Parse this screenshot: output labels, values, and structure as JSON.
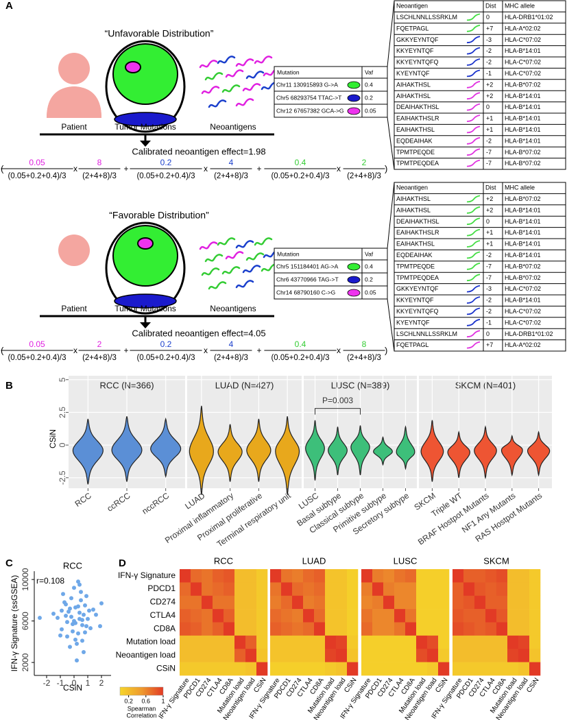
{
  "panel_a": {
    "label": "A",
    "symbols": {
      "open": "(",
      "times": "x",
      "plus": "+",
      "close": ")"
    },
    "scenarios": [
      {
        "title": "“Unfavorable Distribution”",
        "labels": {
          "patient": "Patient",
          "tumor": "Tumor Mutations",
          "neoantigens": "Neoantigens"
        },
        "effect": "Calibrated neoantigen effect=1.98",
        "formula": [
          {
            "n1": "0.05",
            "color": "#e020e0",
            "d1": "(0.05+0.2+0.4)/3",
            "n2": "8",
            "d2": "(2+4+8)/3"
          },
          {
            "n1": "0.2",
            "color": "#1a3fcc",
            "d1": "(0.05+0.2+0.4)/3",
            "n2": "4",
            "d2": "(2+4+8)/3"
          },
          {
            "n1": "0.4",
            "color": "#33cc33",
            "d1": "(0.05+0.2+0.4)/3",
            "n2": "2",
            "d2": "(2+4+8)/3"
          }
        ],
        "mutation_table": {
          "header": [
            "Mutation",
            "Vaf"
          ],
          "rows": [
            {
              "mutation": "Chr11 130915893 G->A",
              "color": "#33ee33",
              "vaf": "0.4"
            },
            {
              "mutation": "Chr5 68293754 TTAC->T",
              "color": "#1a1acc",
              "vaf": "0.2"
            },
            {
              "mutation": "Chr12 67657382 GCA->G",
              "color": "#ee33ee",
              "vaf": "0.05"
            }
          ]
        },
        "neoantigen_table": {
          "header": [
            "Neoantigen",
            "Dist",
            "MHC allele"
          ],
          "rows": [
            {
              "neoantigen": "LSCHLNNLLSSRKLM",
              "color": "#44dd44",
              "dist": "0",
              "allele": "HLA-DRB1*01:02"
            },
            {
              "neoantigen": "FQETPAGL",
              "color": "#44dd44",
              "dist": "+7",
              "allele": "HLA-A*02:02"
            },
            {
              "neoantigen": "GKKYEYNTQF",
              "color": "#1a33cc",
              "dist": "-3",
              "allele": "HLA-C*07:02"
            },
            {
              "neoantigen": "KKYEYNTQF",
              "color": "#1a33cc",
              "dist": "-2",
              "allele": "HLA-B*14:01"
            },
            {
              "neoantigen": "KKYEYNTQFQ",
              "color": "#1a33cc",
              "dist": "-2",
              "allele": "HLA-C*07:02"
            },
            {
              "neoantigen": "KYEYNTQF",
              "color": "#1a33cc",
              "dist": "-1",
              "allele": "HLA-C*07:02"
            },
            {
              "neoantigen": "AIHAKTHSL",
              "color": "#e033e0",
              "dist": "+2",
              "allele": "HLA-B*07:02"
            },
            {
              "neoantigen": "AIHAKTHSL",
              "color": "#e033e0",
              "dist": "+2",
              "allele": "HLA-B*14:01"
            },
            {
              "neoantigen": "DEAIHAKTHSL",
              "color": "#e033e0",
              "dist": "0",
              "allele": "HLA-B*14:01"
            },
            {
              "neoantigen": "EAIHAKTHSLR",
              "color": "#e033e0",
              "dist": "+1",
              "allele": "HLA-B*14:01"
            },
            {
              "neoantigen": "EAIHAKTHSL",
              "color": "#e033e0",
              "dist": "+1",
              "allele": "HLA-B*14:01"
            },
            {
              "neoantigen": "EQDEAIHAK",
              "color": "#e033e0",
              "dist": "-2",
              "allele": "HLA-B*14:01"
            },
            {
              "neoantigen": "TPMTPEQDE",
              "color": "#e033e0",
              "dist": "-7",
              "allele": "HLA-B*07:02"
            },
            {
              "neoantigen": "TPMTPEQDEA",
              "color": "#e033e0",
              "dist": "-7",
              "allele": "HLA-B*07:02"
            }
          ]
        }
      },
      {
        "title": "“Favorable Distribution”",
        "labels": {
          "patient": "Patient",
          "tumor": "Tumor Mutations",
          "neoantigens": "Neoantigens"
        },
        "effect": "Calibrated neoantigen effect=4.05",
        "formula": [
          {
            "n1": "0.05",
            "color": "#e020e0",
            "d1": "(0.05+0.2+0.4)/3",
            "n2": "2",
            "d2": "(2+4+8)/3"
          },
          {
            "n1": "0.2",
            "color": "#1a3fcc",
            "d1": "(0.05+0.2+0.4)/3",
            "n2": "4",
            "d2": "(2+4+8)/3"
          },
          {
            "n1": "0.4",
            "color": "#33cc33",
            "d1": "(0.05+0.2+0.4)/3",
            "n2": "8",
            "d2": "(2+4+8)/3"
          }
        ],
        "mutation_table": {
          "header": [
            "Mutation",
            "Vaf"
          ],
          "rows": [
            {
              "mutation": "Chr5 151184401 AG->A",
              "color": "#33ee33",
              "vaf": "0.4"
            },
            {
              "mutation": "Chr6 43770966 TAG->T",
              "color": "#1a1acc",
              "vaf": "0.2"
            },
            {
              "mutation": "Chr14 68790160 C->G",
              "color": "#ee33ee",
              "vaf": "0.05"
            }
          ]
        },
        "neoantigen_table": {
          "header": [
            "Neoantigen",
            "Dist",
            "MHC allele"
          ],
          "rows": [
            {
              "neoantigen": "AIHAKTHSL",
              "color": "#44dd44",
              "dist": "+2",
              "allele": "HLA-B*07:02"
            },
            {
              "neoantigen": "AIHAKTHSL",
              "color": "#44dd44",
              "dist": "+2",
              "allele": "HLA-B*14:01"
            },
            {
              "neoantigen": "DEAIHAKTHSL",
              "color": "#44dd44",
              "dist": "0",
              "allele": "HLA-B*14:01"
            },
            {
              "neoantigen": "EAIHAKTHSLR",
              "color": "#44dd44",
              "dist": "+1",
              "allele": "HLA-B*14:01"
            },
            {
              "neoantigen": "EAIHAKTHSL",
              "color": "#44dd44",
              "dist": "+1",
              "allele": "HLA-B*14:01"
            },
            {
              "neoantigen": "EQDEAIHAK",
              "color": "#44dd44",
              "dist": "-2",
              "allele": "HLA-B*14:01"
            },
            {
              "neoantigen": "TPMTPEQDE",
              "color": "#44dd44",
              "dist": "-7",
              "allele": "HLA-B*07:02"
            },
            {
              "neoantigen": "TPMTPEQDEA",
              "color": "#44dd44",
              "dist": "-7",
              "allele": "HLA-B*07:02"
            },
            {
              "neoantigen": "GKKYEYNTQF",
              "color": "#1a33cc",
              "dist": "-3",
              "allele": "HLA-C*07:02"
            },
            {
              "neoantigen": "KKYEYNTQF",
              "color": "#1a33cc",
              "dist": "-2",
              "allele": "HLA-B*14:01"
            },
            {
              "neoantigen": "KKYEYNTQFQ",
              "color": "#1a33cc",
              "dist": "-2",
              "allele": "HLA-C*07:02"
            },
            {
              "neoantigen": "KYEYNTQF",
              "color": "#1a33cc",
              "dist": "-1",
              "allele": "HLA-C*07:02"
            },
            {
              "neoantigen": "LSCHLNNLLSSRKLM",
              "color": "#e033e0",
              "dist": "0",
              "allele": "HLA-DRB1*01:02"
            },
            {
              "neoantigen": "FQETPAGL",
              "color": "#e033e0",
              "dist": "+7",
              "allele": "HLA-A*02:02"
            }
          ]
        }
      }
    ]
  },
  "chart_data": [
    {
      "type": "violin",
      "panel_label": "B",
      "y_label": "CSiN",
      "ylim": [
        -3.3,
        5.3
      ],
      "yticks": [
        5,
        2.5,
        0,
        -2.5
      ],
      "grid": true,
      "annotation": "P=0.003",
      "groups": [
        {
          "title": "RCC (N=366)",
          "color": "#5b8fd6",
          "categories": [
            "RCC",
            "ccRCC",
            "nccRCC"
          ],
          "mins": [
            -3.0,
            -2.8,
            -2.4
          ],
          "medians": [
            -0.4,
            -0.4,
            -0.3
          ],
          "maxs": [
            2.0,
            2.2,
            2.0
          ]
        },
        {
          "title": "LUAD (N=427)",
          "color": "#e8a81c",
          "categories": [
            "LUAD",
            "Proximal inflammatory",
            "Proximal proliferative",
            "Terminal respiratory unit"
          ],
          "mins": [
            -3.8,
            -2.8,
            -2.8,
            -3.8
          ],
          "medians": [
            -0.5,
            -0.5,
            -0.4,
            -0.4
          ],
          "maxs": [
            3.0,
            1.6,
            2.0,
            2.2
          ]
        },
        {
          "title": "LUSC (N=389)",
          "color": "#3dbf7a",
          "categories": [
            "LUSC",
            "Basal subtype",
            "Classical subtype",
            "Primitive subtype",
            "Secretory subtype"
          ],
          "mins": [
            -2.7,
            -2.3,
            -2.3,
            -1.5,
            -1.8
          ],
          "medians": [
            -0.2,
            -0.4,
            -0.1,
            -0.5,
            -0.6
          ],
          "maxs": [
            1.9,
            1.4,
            1.5,
            0.6,
            1.4
          ]
        },
        {
          "title": "SKCM (N=401)",
          "color": "#ee5533",
          "categories": [
            "SKCM",
            "Triple WT",
            "BRAF Hostpot Mutants",
            "NF1 Any Mutants",
            "RAS Hostpot Mutants"
          ],
          "mins": [
            -2.8,
            -2.5,
            -2.5,
            -2.3,
            -2.3
          ],
          "medians": [
            -0.5,
            -0.5,
            -0.4,
            -0.3,
            -0.4
          ],
          "maxs": [
            1.9,
            1.0,
            1.4,
            0.7,
            1.0
          ]
        }
      ]
    },
    {
      "type": "scatter",
      "panel_label": "C",
      "title": "RCC",
      "x_label": "CSiN",
      "y_label": "IFN-γ Signature (ssGSEA)",
      "annotation": "r=0.108",
      "color": "#6fa8e8",
      "xlim": [
        -2.9,
        2.7
      ],
      "ylim": [
        750,
        10800
      ],
      "xticks": [
        -2,
        -1,
        0,
        1,
        2
      ],
      "yticks": [
        2000,
        6000,
        10000
      ],
      "x": [
        -0.6,
        -0.3,
        0.1,
        0.4,
        0.8,
        -0.9,
        -0.2,
        0.3,
        0.6,
        1.1,
        -0.5,
        0.0,
        0.5,
        0.9,
        -1.2,
        -0.7,
        0.2,
        0.7,
        1.4,
        -0.1,
        0.4,
        -0.4,
        0.1,
        0.6,
        -0.8,
        1.0,
        -0.3,
        0.3,
        0.8,
        -1.5,
        0.0,
        0.5,
        1.2,
        -0.6,
        0.2,
        1.9,
        -2.5,
        2.0,
        -1.0,
        0.9,
        -0.2,
        0.7,
        0.3,
        -0.5,
        1.6,
        0.1,
        -0.9,
        0.4,
        0.6,
        -0.1
      ],
      "y": [
        6500,
        7200,
        5800,
        6800,
        7500,
        5200,
        8200,
        4800,
        6100,
        7000,
        4500,
        9200,
        8000,
        5500,
        6300,
        7800,
        3800,
        6600,
        7100,
        5000,
        9500,
        6900,
        4200,
        5600,
        8600,
        6200,
        3500,
        7400,
        4900,
        6700,
        6000,
        8800,
        5300,
        7600,
        2200,
        5500,
        6300,
        7700,
        4600,
        8400,
        6400,
        3000,
        9800,
        5900,
        6600,
        7300,
        7000,
        6200,
        4100,
        5700
      ]
    },
    {
      "type": "heatmap",
      "panel_label": "D",
      "labels": [
        "IFN-γ Signature",
        "PDCD1",
        "CD274",
        "CTLA4",
        "CD8A",
        "Mutation load",
        "Neoantigen load",
        "CSiN"
      ],
      "clim": [
        0,
        1
      ],
      "cticks": [
        0.2,
        0.6,
        1
      ],
      "legend_title": [
        "Spearman",
        "Correlation"
      ],
      "panels": [
        {
          "title": "RCC",
          "values": [
            [
              1,
              0.75,
              0.7,
              0.8,
              0.85,
              0.2,
              0.2,
              0.1
            ],
            [
              0.75,
              1,
              0.7,
              0.75,
              0.8,
              0.2,
              0.2,
              0.1
            ],
            [
              0.7,
              0.7,
              1,
              0.7,
              0.7,
              0.2,
              0.2,
              0.1
            ],
            [
              0.8,
              0.75,
              0.7,
              1,
              0.8,
              0.2,
              0.2,
              0.1
            ],
            [
              0.85,
              0.8,
              0.7,
              0.8,
              1,
              0.2,
              0.2,
              0.1
            ],
            [
              0.2,
              0.2,
              0.2,
              0.2,
              0.2,
              1,
              0.8,
              0.1
            ],
            [
              0.2,
              0.2,
              0.2,
              0.2,
              0.2,
              0.8,
              1,
              0.15
            ],
            [
              0.1,
              0.1,
              0.1,
              0.1,
              0.1,
              0.1,
              0.15,
              1
            ]
          ]
        },
        {
          "title": "LUAD",
          "values": [
            [
              1,
              0.7,
              0.65,
              0.75,
              0.8,
              0.15,
              0.15,
              0.05
            ],
            [
              0.7,
              1,
              0.75,
              0.7,
              0.75,
              0.15,
              0.15,
              0.05
            ],
            [
              0.65,
              0.75,
              1,
              0.65,
              0.7,
              0.15,
              0.15,
              0.05
            ],
            [
              0.75,
              0.7,
              0.65,
              1,
              0.75,
              0.15,
              0.15,
              0.05
            ],
            [
              0.8,
              0.75,
              0.7,
              0.75,
              1,
              0.15,
              0.15,
              0.05
            ],
            [
              0.15,
              0.15,
              0.15,
              0.15,
              0.15,
              1,
              0.95,
              0.1
            ],
            [
              0.15,
              0.15,
              0.15,
              0.15,
              0.15,
              0.95,
              1,
              0.15
            ],
            [
              0.05,
              0.05,
              0.05,
              0.05,
              0.05,
              0.1,
              0.15,
              1
            ]
          ]
        },
        {
          "title": "LUSC",
          "values": [
            [
              1,
              0.65,
              0.6,
              0.7,
              0.75,
              0.05,
              0.05,
              0.05
            ],
            [
              0.65,
              1,
              0.65,
              0.6,
              0.6,
              0.05,
              0.05,
              0.05
            ],
            [
              0.6,
              0.65,
              1,
              0.6,
              0.6,
              0.05,
              0.05,
              0.05
            ],
            [
              0.7,
              0.6,
              0.6,
              1,
              0.7,
              0.05,
              0.05,
              0.05
            ],
            [
              0.75,
              0.6,
              0.6,
              0.7,
              1,
              0.05,
              0.05,
              0.05
            ],
            [
              0.05,
              0.05,
              0.05,
              0.05,
              0.05,
              1,
              0.9,
              0.05
            ],
            [
              0.05,
              0.05,
              0.05,
              0.05,
              0.05,
              0.9,
              1,
              0.1
            ],
            [
              0.05,
              0.05,
              0.05,
              0.05,
              0.05,
              0.05,
              0.1,
              1
            ]
          ]
        },
        {
          "title": "SKCM",
          "values": [
            [
              1,
              0.8,
              0.8,
              0.85,
              0.9,
              0.2,
              0.2,
              0.1
            ],
            [
              0.8,
              1,
              0.85,
              0.8,
              0.85,
              0.2,
              0.2,
              0.1
            ],
            [
              0.8,
              0.85,
              1,
              0.8,
              0.8,
              0.2,
              0.2,
              0.1
            ],
            [
              0.85,
              0.8,
              0.8,
              1,
              0.85,
              0.2,
              0.2,
              0.1
            ],
            [
              0.9,
              0.85,
              0.8,
              0.85,
              1,
              0.2,
              0.2,
              0.1
            ],
            [
              0.2,
              0.2,
              0.2,
              0.2,
              0.2,
              1,
              0.95,
              0.1
            ],
            [
              0.2,
              0.2,
              0.2,
              0.2,
              0.2,
              0.95,
              1,
              0.15
            ],
            [
              0.1,
              0.1,
              0.1,
              0.1,
              0.1,
              0.1,
              0.15,
              1
            ]
          ]
        }
      ]
    }
  ]
}
